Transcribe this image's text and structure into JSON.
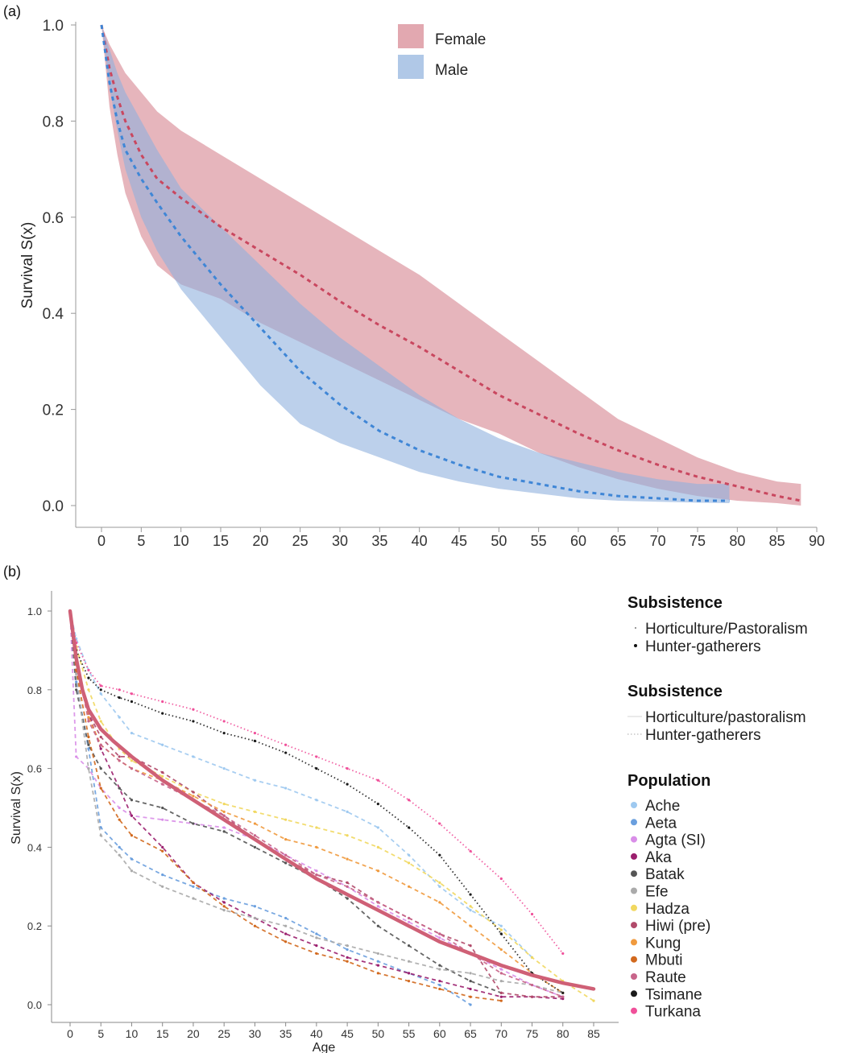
{
  "chart_data": [
    {
      "panel": "(a)",
      "type": "area",
      "ylabel": "Survival S(x)",
      "xlabel": "",
      "xlim": [
        0,
        90
      ],
      "ylim": [
        0,
        1
      ],
      "xticks": [
        "0",
        "5",
        "10",
        "15",
        "20",
        "25",
        "30",
        "35",
        "40",
        "45",
        "50",
        "55",
        "60",
        "65",
        "70",
        "75",
        "80",
        "85",
        "90"
      ],
      "yticks": [
        "0.0",
        "0.2",
        "0.4",
        "0.6",
        "0.8",
        "1.0"
      ],
      "legend": {
        "position": "top-center",
        "entries": [
          "Female",
          "Male"
        ]
      },
      "colors": {
        "Female": "#d6838f",
        "Male": "#8fb1dd",
        "female_line": "#c9475f",
        "male_line": "#3f86d6"
      },
      "series": [
        {
          "name": "Female",
          "x": [
            0,
            1,
            2,
            3,
            5,
            7,
            10,
            15,
            20,
            25,
            30,
            35,
            40,
            45,
            50,
            55,
            60,
            65,
            70,
            75,
            80,
            85,
            88
          ],
          "mean": [
            1.0,
            0.91,
            0.85,
            0.8,
            0.73,
            0.68,
            0.64,
            0.58,
            0.53,
            0.48,
            0.425,
            0.375,
            0.33,
            0.28,
            0.23,
            0.19,
            0.15,
            0.115,
            0.085,
            0.06,
            0.04,
            0.02,
            0.01
          ],
          "upper": [
            1.0,
            0.96,
            0.93,
            0.9,
            0.86,
            0.82,
            0.78,
            0.73,
            0.68,
            0.63,
            0.58,
            0.53,
            0.48,
            0.42,
            0.36,
            0.3,
            0.24,
            0.18,
            0.14,
            0.1,
            0.07,
            0.05,
            0.045
          ],
          "lower": [
            1.0,
            0.83,
            0.73,
            0.65,
            0.56,
            0.5,
            0.46,
            0.43,
            0.38,
            0.34,
            0.3,
            0.26,
            0.22,
            0.18,
            0.15,
            0.11,
            0.08,
            0.055,
            0.035,
            0.02,
            0.01,
            0.005,
            0.0
          ]
        },
        {
          "name": "Male",
          "x": [
            0,
            1,
            2,
            3,
            5,
            7,
            10,
            15,
            20,
            25,
            30,
            35,
            40,
            45,
            50,
            55,
            60,
            65,
            70,
            75,
            79
          ],
          "mean": [
            1.0,
            0.88,
            0.8,
            0.74,
            0.68,
            0.63,
            0.56,
            0.46,
            0.37,
            0.28,
            0.21,
            0.155,
            0.115,
            0.085,
            0.06,
            0.045,
            0.03,
            0.02,
            0.015,
            0.01,
            0.01
          ],
          "upper": [
            1.0,
            0.95,
            0.9,
            0.86,
            0.8,
            0.74,
            0.66,
            0.58,
            0.5,
            0.42,
            0.35,
            0.29,
            0.23,
            0.18,
            0.14,
            0.11,
            0.09,
            0.07,
            0.055,
            0.045,
            0.045
          ],
          "lower": [
            1.0,
            0.87,
            0.78,
            0.7,
            0.6,
            0.53,
            0.45,
            0.35,
            0.25,
            0.17,
            0.13,
            0.1,
            0.07,
            0.05,
            0.035,
            0.025,
            0.015,
            0.01,
            0.008,
            0.006,
            0.005
          ]
        }
      ]
    },
    {
      "panel": "(b)",
      "type": "line",
      "ylabel": "Survival S(x)",
      "xlabel": "Age",
      "xlim": [
        0,
        85
      ],
      "ylim": [
        0,
        1
      ],
      "xticks": [
        "0",
        "5",
        "10",
        "15",
        "20",
        "25",
        "30",
        "35",
        "40",
        "45",
        "50",
        "55",
        "60",
        "65",
        "70",
        "75",
        "80",
        "85"
      ],
      "yticks": [
        "0.0",
        "0.2",
        "0.4",
        "0.6",
        "0.8",
        "1.0"
      ],
      "legend": {
        "position": "right",
        "groups": [
          {
            "title": "Subsistence",
            "kind": "point",
            "entries": [
              "Horticulture/Pastoralism",
              "Hunter-gatherers"
            ]
          },
          {
            "title": "Subsistence",
            "kind": "line",
            "entries": [
              "Horticulture/pastoralism",
              "Hunter-gatherers"
            ]
          },
          {
            "title": "Population",
            "kind": "color",
            "entries": [
              "Ache",
              "Aeta",
              "Agta (SI)",
              "Aka",
              "Batak",
              "Efe",
              "Hadza",
              "Hiwi (pre)",
              "Kung",
              "Mbuti",
              "Raute",
              "Tsimane",
              "Turkana"
            ],
            "colors": [
              "#9ec9f0",
              "#6a9fde",
              "#d98ee8",
              "#9b1f6e",
              "#555555",
              "#aaaaaa",
              "#f1d860",
              "#b14a6a",
              "#f09a3e",
              "#d2691e",
              "#c8658a",
              "#1a1a1a",
              "#f0509a"
            ]
          }
        ]
      },
      "pooled": {
        "color": "#cf6076",
        "x": [
          0,
          1,
          2,
          3,
          5,
          7,
          10,
          15,
          20,
          25,
          30,
          35,
          40,
          45,
          50,
          55,
          60,
          65,
          70,
          75,
          80,
          85
        ],
        "y": [
          1.0,
          0.88,
          0.8,
          0.75,
          0.7,
          0.67,
          0.63,
          0.57,
          0.52,
          0.47,
          0.42,
          0.37,
          0.32,
          0.28,
          0.24,
          0.2,
          0.16,
          0.13,
          0.1,
          0.075,
          0.055,
          0.04
        ]
      },
      "series": [
        {
          "name": "Ache",
          "style": "dashed",
          "x": [
            0,
            1,
            3,
            5,
            8,
            10,
            15,
            20,
            25,
            30,
            35,
            40,
            45,
            50,
            55,
            60,
            65,
            70,
            75
          ],
          "y": [
            1.0,
            0.93,
            0.85,
            0.79,
            0.73,
            0.69,
            0.66,
            0.63,
            0.6,
            0.57,
            0.55,
            0.52,
            0.49,
            0.45,
            0.38,
            0.3,
            0.24,
            0.2,
            0.12
          ]
        },
        {
          "name": "Aeta",
          "style": "dashed",
          "x": [
            0,
            1,
            3,
            5,
            8,
            10,
            15,
            20,
            25,
            30,
            35,
            40,
            45,
            50,
            55,
            60,
            65
          ],
          "y": [
            1.0,
            0.82,
            0.65,
            0.45,
            0.4,
            0.37,
            0.33,
            0.3,
            0.27,
            0.25,
            0.22,
            0.18,
            0.14,
            0.11,
            0.08,
            0.05,
            0.0
          ]
        },
        {
          "name": "Agta (SI)",
          "style": "dashed",
          "x": [
            0,
            1,
            3,
            5,
            8,
            10,
            15,
            20,
            25,
            30,
            35,
            40,
            45,
            50,
            55,
            60,
            65,
            70,
            75,
            80
          ],
          "y": [
            1.0,
            0.63,
            0.6,
            0.55,
            0.5,
            0.48,
            0.47,
            0.46,
            0.45,
            0.42,
            0.38,
            0.34,
            0.3,
            0.25,
            0.21,
            0.17,
            0.13,
            0.09,
            0.05,
            0.02
          ]
        },
        {
          "name": "Aka",
          "style": "dashed",
          "x": [
            0,
            1,
            3,
            5,
            8,
            10,
            15,
            20,
            25,
            30,
            35,
            40,
            45,
            50,
            55,
            60,
            65,
            70,
            75,
            80
          ],
          "y": [
            1.0,
            0.88,
            0.74,
            0.65,
            0.55,
            0.48,
            0.4,
            0.31,
            0.26,
            0.22,
            0.18,
            0.15,
            0.12,
            0.1,
            0.08,
            0.06,
            0.04,
            0.02,
            0.02,
            0.015
          ]
        },
        {
          "name": "Batak",
          "style": "dashed",
          "x": [
            0,
            1,
            3,
            5,
            8,
            10,
            15,
            20,
            25,
            30,
            35,
            40,
            45,
            50,
            55,
            60,
            65,
            70
          ],
          "y": [
            1.0,
            0.8,
            0.66,
            0.6,
            0.55,
            0.52,
            0.5,
            0.46,
            0.44,
            0.4,
            0.36,
            0.32,
            0.27,
            0.2,
            0.15,
            0.1,
            0.06,
            0.03
          ]
        },
        {
          "name": "Efe",
          "style": "dashed",
          "x": [
            0,
            1,
            3,
            5,
            8,
            10,
            15,
            20,
            25,
            30,
            35,
            40,
            45,
            50,
            55,
            60,
            65,
            70,
            75,
            80
          ],
          "y": [
            1.0,
            0.84,
            0.6,
            0.43,
            0.38,
            0.34,
            0.3,
            0.27,
            0.24,
            0.22,
            0.2,
            0.17,
            0.15,
            0.13,
            0.11,
            0.09,
            0.08,
            0.06,
            0.05,
            0.03
          ]
        },
        {
          "name": "Hadza",
          "style": "dashed",
          "x": [
            0,
            1,
            3,
            5,
            8,
            10,
            15,
            20,
            25,
            30,
            35,
            40,
            45,
            50,
            55,
            60,
            65,
            70,
            75,
            80,
            85
          ],
          "y": [
            1.0,
            0.91,
            0.8,
            0.72,
            0.65,
            0.62,
            0.58,
            0.54,
            0.51,
            0.49,
            0.47,
            0.45,
            0.43,
            0.4,
            0.36,
            0.31,
            0.25,
            0.19,
            0.12,
            0.06,
            0.01
          ]
        },
        {
          "name": "Hiwi (pre)",
          "style": "dashed",
          "x": [
            0,
            1,
            3,
            5,
            8,
            10,
            15,
            20,
            25,
            30,
            35,
            40,
            45,
            50,
            55,
            60,
            65,
            70,
            75,
            80
          ],
          "y": [
            1.0,
            0.85,
            0.74,
            0.68,
            0.63,
            0.63,
            0.59,
            0.54,
            0.48,
            0.42,
            0.37,
            0.33,
            0.31,
            0.26,
            0.22,
            0.18,
            0.15,
            0.03,
            0.02,
            0.02
          ]
        },
        {
          "name": "Kung",
          "style": "dashed",
          "x": [
            0,
            1,
            3,
            5,
            8,
            10,
            15,
            20,
            25,
            30,
            35,
            40,
            45,
            50,
            55,
            60,
            65,
            70,
            75,
            80
          ],
          "y": [
            1.0,
            0.88,
            0.73,
            0.66,
            0.62,
            0.6,
            0.57,
            0.53,
            0.49,
            0.46,
            0.42,
            0.4,
            0.37,
            0.34,
            0.3,
            0.26,
            0.2,
            0.14,
            0.08,
            0.03
          ]
        },
        {
          "name": "Mbuti",
          "style": "dashed",
          "x": [
            0,
            1,
            3,
            5,
            8,
            10,
            15,
            20,
            25,
            30,
            35,
            40,
            45,
            50,
            55,
            60,
            65,
            70
          ],
          "y": [
            1.0,
            0.85,
            0.68,
            0.55,
            0.47,
            0.43,
            0.39,
            0.31,
            0.25,
            0.2,
            0.16,
            0.13,
            0.11,
            0.08,
            0.06,
            0.04,
            0.02,
            0.01
          ]
        },
        {
          "name": "Raute",
          "style": "dashed",
          "x": [
            0,
            1,
            3,
            5,
            8,
            10,
            15,
            20,
            25,
            30,
            35,
            40,
            45,
            50,
            55,
            60,
            65,
            70,
            75,
            80
          ],
          "y": [
            1.0,
            0.88,
            0.72,
            0.66,
            0.62,
            0.6,
            0.56,
            0.52,
            0.48,
            0.43,
            0.38,
            0.33,
            0.3,
            0.26,
            0.22,
            0.18,
            0.13,
            0.08,
            0.05,
            0.02
          ]
        },
        {
          "name": "Tsimane",
          "style": "dotted",
          "x": [
            0,
            1,
            3,
            5,
            8,
            10,
            15,
            20,
            25,
            30,
            35,
            40,
            45,
            50,
            55,
            60,
            65,
            70,
            75,
            80
          ],
          "y": [
            1.0,
            0.9,
            0.83,
            0.8,
            0.78,
            0.77,
            0.74,
            0.72,
            0.69,
            0.67,
            0.64,
            0.6,
            0.56,
            0.51,
            0.45,
            0.38,
            0.28,
            0.18,
            0.08,
            0.03
          ]
        },
        {
          "name": "Turkana",
          "style": "dotted",
          "x": [
            0,
            1,
            3,
            5,
            8,
            10,
            15,
            20,
            25,
            30,
            35,
            40,
            45,
            50,
            55,
            60,
            65,
            70,
            75,
            80
          ],
          "y": [
            1.0,
            0.92,
            0.85,
            0.81,
            0.8,
            0.79,
            0.77,
            0.75,
            0.72,
            0.69,
            0.66,
            0.63,
            0.6,
            0.57,
            0.52,
            0.46,
            0.39,
            0.32,
            0.23,
            0.13
          ]
        }
      ]
    }
  ]
}
